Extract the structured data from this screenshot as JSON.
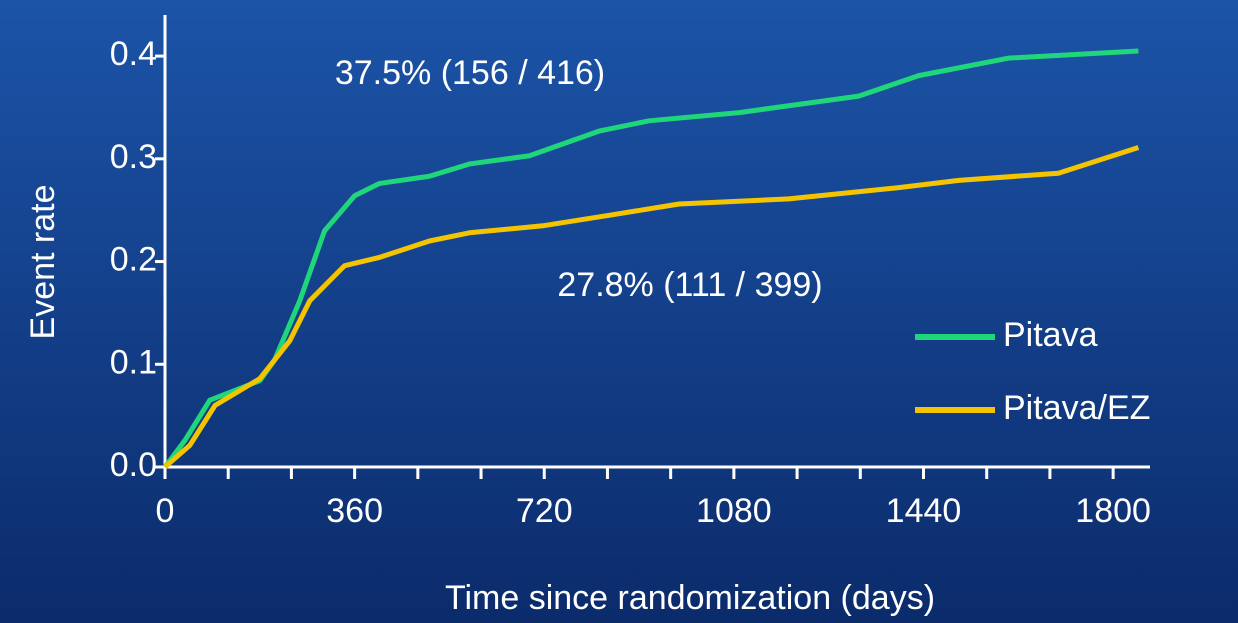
{
  "chart_data": {
    "type": "line",
    "xlabel": "Time since randomization (days)",
    "ylabel": "Event rate",
    "xlim": [
      0,
      1870
    ],
    "xticks": [
      0,
      360,
      720,
      1080,
      1440,
      1800
    ],
    "xminorticks": [
      120,
      240,
      480,
      600,
      840,
      960,
      1200,
      1320,
      1560,
      1680
    ],
    "ylim": [
      0,
      0.44
    ],
    "yticks": [
      {
        "value": 0,
        "label": "0.0"
      },
      0.1,
      0.2,
      0.3,
      0.4
    ],
    "legend": "lower right",
    "annotations": [
      "37.5% (156 / 416)",
      "27.8% (111 / 399)"
    ],
    "series": [
      {
        "name": "Pitava",
        "color": "#1fd67a",
        "x": [
          0,
          38,
          85,
          180,
          208,
          256,
          303,
          360,
          407,
          502,
          578,
          692,
          824,
          919,
          1090,
          1317,
          1431,
          1601,
          1848
        ],
        "values": [
          0,
          0.026,
          0.065,
          0.084,
          0.104,
          0.162,
          0.23,
          0.264,
          0.276,
          0.283,
          0.295,
          0.303,
          0.327,
          0.337,
          0.345,
          0.361,
          0.381,
          0.398,
          0.405
        ]
      },
      {
        "name": "Pitava/EZ",
        "color": "#f5c400",
        "x": [
          0,
          47,
          95,
          180,
          237,
          275,
          341,
          407,
          502,
          578,
          720,
          843,
          976,
          1184,
          1393,
          1507,
          1696,
          1848
        ],
        "values": [
          0,
          0.021,
          0.06,
          0.086,
          0.123,
          0.162,
          0.196,
          0.204,
          0.22,
          0.228,
          0.235,
          0.245,
          0.256,
          0.261,
          0.272,
          0.279,
          0.286,
          0.311
        ]
      }
    ]
  }
}
